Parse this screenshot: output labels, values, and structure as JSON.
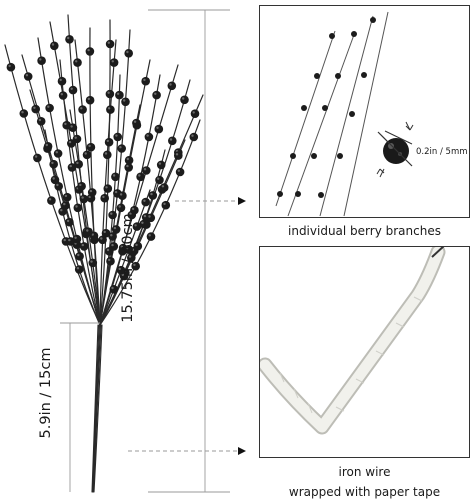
{
  "labels": {
    "total_height": "15.75in / 40cm",
    "stem_length": "5.9in / 15cm",
    "bead_size": "0.2in / 5mm"
  },
  "captions": {
    "top_panel": "individual berry branches",
    "bottom_panel_line1": "iron wire",
    "bottom_panel_line2": "wrapped with paper tape"
  },
  "colors": {
    "berry": "#1c1c1c",
    "stem": "#2a2a2a",
    "paper_tape": "#efefeb",
    "dashed_line": "#9a9a9a"
  }
}
